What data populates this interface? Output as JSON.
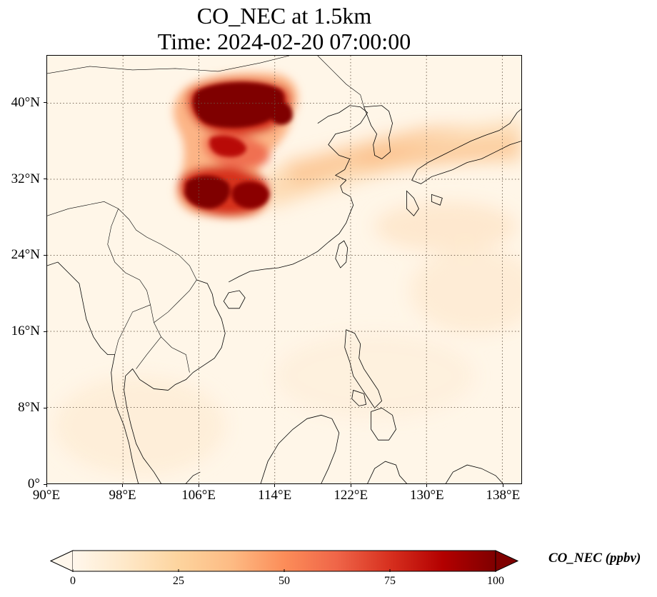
{
  "title": {
    "line1": "CO_NEC at 1.5km",
    "line2": "Time: 2024-02-20 07:00:00"
  },
  "map": {
    "projection": "PlateCarree",
    "lon_range": [
      90,
      140
    ],
    "lat_range": [
      0,
      45
    ],
    "gridlines": true,
    "gridline_style": "dotted",
    "features": [
      "coastlines",
      "country-borders"
    ],
    "x_ticks": [
      "90°E",
      "98°E",
      "106°E",
      "114°E",
      "122°E",
      "130°E",
      "138°E"
    ],
    "x_tick_values": [
      90,
      98,
      106,
      114,
      122,
      130,
      138
    ],
    "y_ticks": [
      "0°",
      "8°N",
      "16°N",
      "24°N",
      "32°N",
      "40°N"
    ],
    "y_tick_values": [
      0,
      8,
      16,
      24,
      32,
      40
    ]
  },
  "colorbar": {
    "label": "CO_NEC (ppbv)",
    "colormap": "OrRd",
    "min": 0,
    "max": 100,
    "extend": "both",
    "ticks": [
      "0",
      "25",
      "50",
      "75",
      "100"
    ],
    "tick_values": [
      0,
      25,
      50,
      75,
      100
    ],
    "colors": [
      "#fff7ec",
      "#fee8c8",
      "#fdd49e",
      "#fdbb84",
      "#fc8d59",
      "#ef6548",
      "#d7301f",
      "#b30000",
      "#7f0000"
    ]
  }
}
